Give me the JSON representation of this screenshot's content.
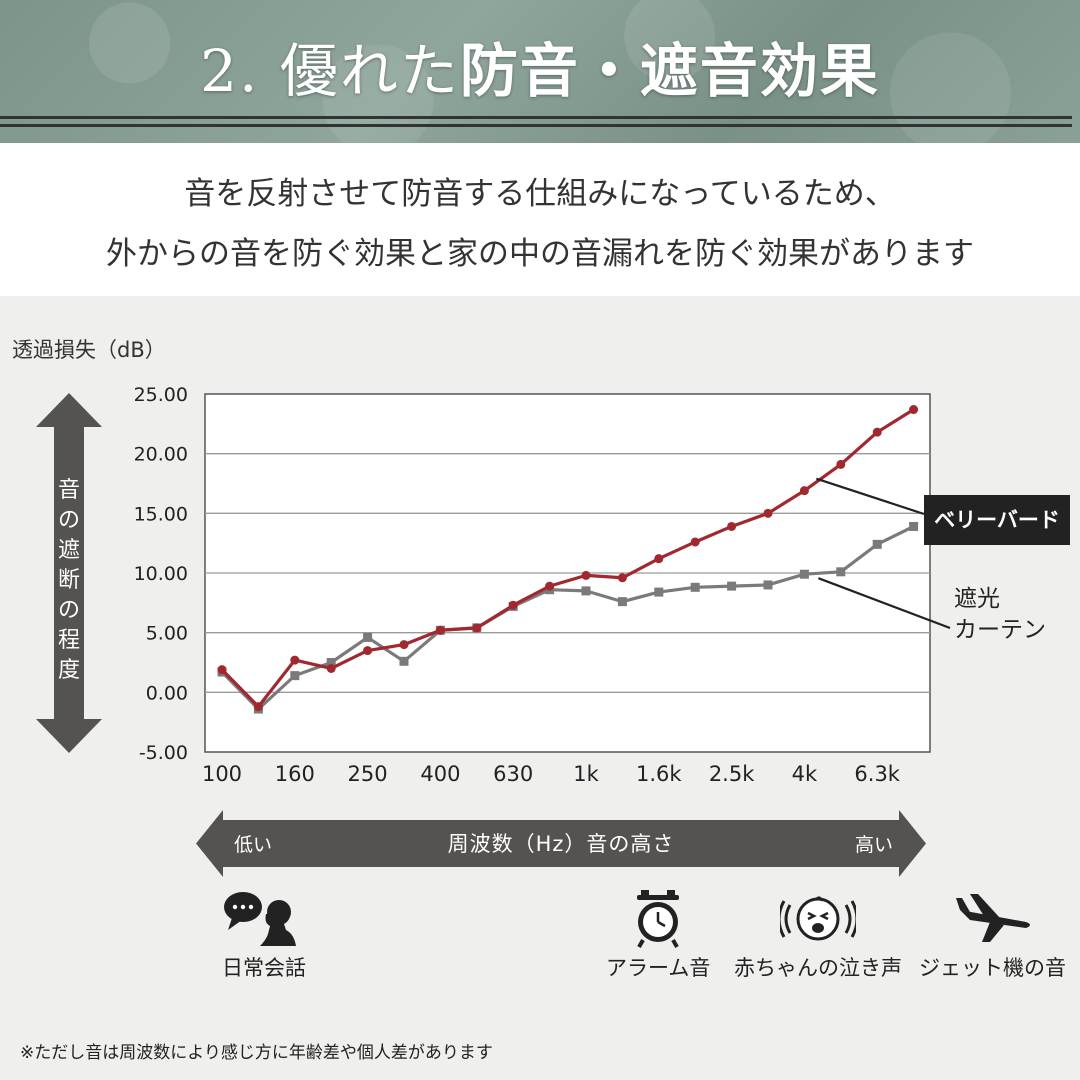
{
  "header": {
    "title_prefix": "2. 優れた",
    "title_bold": "防音・遮音効果"
  },
  "intro": {
    "line1": "音を反射させて防音する仕組みになっているため、",
    "line2": "外からの音を防ぐ効果と家の中の音漏れを防ぐ効果があります"
  },
  "axis": {
    "y_title": "透過損失（dB）",
    "y_arrow_label": "音の遮断の程度",
    "x_arrow_low": "低い",
    "x_arrow_mid": "周波数（Hz）音の高さ",
    "x_arrow_high": "高い"
  },
  "legend": {
    "berry_bird": "ベリーバード",
    "curtain_line1": "遮光",
    "curtain_line2": "カーテン"
  },
  "examples": [
    {
      "label": "日常会話",
      "icon": "conversation-icon"
    },
    {
      "label": "アラーム音",
      "icon": "alarm-clock-icon"
    },
    {
      "label": "赤ちゃんの泣き声",
      "icon": "crying-baby-icon"
    },
    {
      "label": "ジェット機の音",
      "icon": "airplane-icon"
    }
  ],
  "footnote": "※ただし音は周波数により感じ方に年齢差や個人差があります",
  "chart_data": {
    "type": "line",
    "title": "",
    "xlabel": "周波数（Hz）音の高さ",
    "ylabel": "透過損失（dB）",
    "ylim": [
      -5,
      25
    ],
    "yticks": [
      "25.00",
      "20.00",
      "15.00",
      "10.00",
      "5.00",
      "0.00",
      "-5.00"
    ],
    "xtick_labels": [
      "100",
      "160",
      "250",
      "400",
      "630",
      "1k",
      "1.6k",
      "2.5k",
      "4k",
      "6.3k"
    ],
    "x": [
      "100",
      "125",
      "160",
      "200",
      "250",
      "315",
      "400",
      "500",
      "630",
      "800",
      "1k",
      "1.25k",
      "1.6k",
      "2k",
      "2.5k",
      "3.15k",
      "4k",
      "5k",
      "6.3k",
      "8k"
    ],
    "series": [
      {
        "name": "ベリーバード",
        "color": "#a0282e",
        "marker": "circle",
        "values": [
          1.9,
          -1.2,
          2.7,
          2.0,
          3.5,
          4.0,
          5.2,
          5.4,
          7.3,
          8.9,
          9.8,
          9.6,
          11.2,
          12.6,
          13.9,
          15.0,
          16.9,
          19.1,
          21.8,
          23.7
        ]
      },
      {
        "name": "遮光カーテン",
        "color": "#7a7a7a",
        "marker": "square",
        "values": [
          1.7,
          -1.4,
          1.4,
          2.5,
          4.6,
          2.6,
          5.2,
          5.4,
          7.2,
          8.6,
          8.5,
          7.6,
          8.4,
          8.8,
          8.9,
          9.0,
          9.9,
          10.1,
          12.4,
          13.9
        ]
      }
    ],
    "grid": true,
    "legend_placement": "right"
  },
  "colors": {
    "berry_bird": "#a0282e",
    "curtain": "#7a7a7a",
    "arrow": "#555350",
    "tag_bg": "#222222"
  }
}
